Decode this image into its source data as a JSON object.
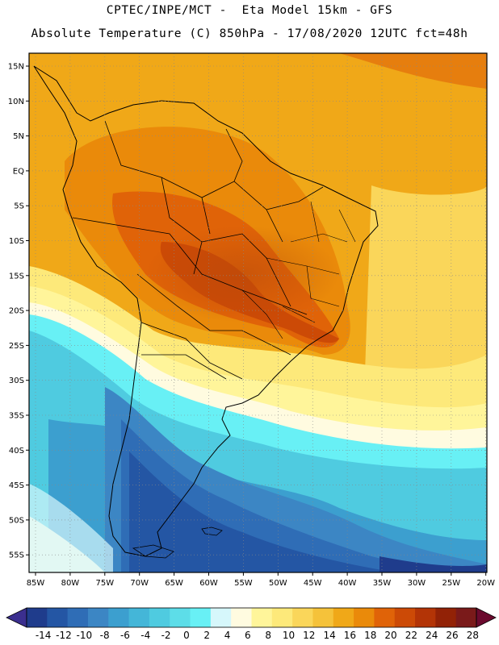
{
  "header": {
    "line1": "CPTEC/INPE/MCT -  Eta Model 15km - GFS",
    "line2": "Absolute Temperature (C) 850hPa - 17/08/2020 12UTC fct=48h"
  },
  "map": {
    "region": "South America",
    "lat_ticks": [
      "15N",
      "10N",
      "5N",
      "EQ",
      "5S",
      "10S",
      "15S",
      "20S",
      "25S",
      "30S",
      "35S",
      "40S",
      "45S",
      "50S",
      "55S"
    ],
    "lon_ticks": [
      "85W",
      "80W",
      "75W",
      "70W",
      "65W",
      "60W",
      "55W",
      "50W",
      "45W",
      "40W",
      "35W",
      "30W",
      "25W",
      "20W"
    ],
    "gridlines": "dotted"
  },
  "colorbar": {
    "ticks": [
      "-14",
      "-12",
      "-10",
      "-8",
      "-6",
      "-4",
      "-2",
      "0",
      "2",
      "4",
      "6",
      "8",
      "10",
      "12",
      "14",
      "16",
      "18",
      "20",
      "22",
      "24",
      "26",
      "28"
    ],
    "colors": [
      "#1f3c8c",
      "#2456a4",
      "#2f6db6",
      "#3c86c4",
      "#3c9fcf",
      "#44b6d8",
      "#4fcbe0",
      "#5ddde8",
      "#68f0f5",
      "#d6f7fb",
      "#fffbe0",
      "#fff59a",
      "#fde97a",
      "#fad65a",
      "#f5c23a",
      "#f0a818",
      "#ea8a0a",
      "#e06308",
      "#cc4a06",
      "#b33406",
      "#922206",
      "#7a1a1a"
    ],
    "under_color": "#3b2f8f",
    "over_color": "#6b0a2e"
  }
}
